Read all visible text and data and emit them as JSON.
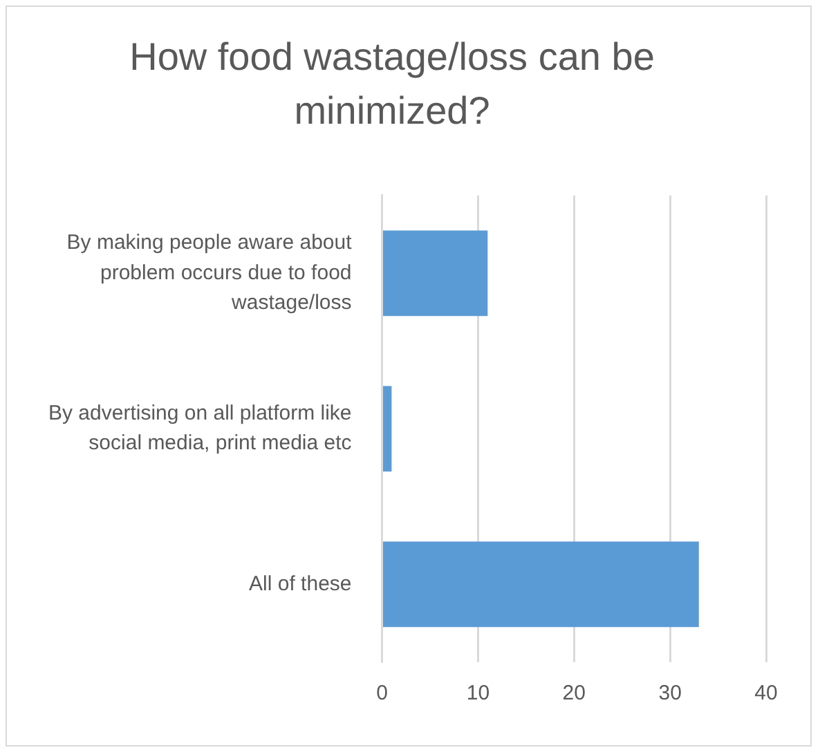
{
  "chart_data": {
    "type": "bar",
    "orientation": "horizontal",
    "title": "How food wastage/loss can be minimized?",
    "categories": [
      "By making people aware about problem occurs due to food wastage/loss",
      "By advertising on all platform like social media, print media etc",
      "All of these"
    ],
    "values": [
      11,
      1,
      33
    ],
    "color": "#5b9bd5",
    "xlim": [
      0,
      40
    ],
    "xticks": [
      0,
      10,
      20,
      30,
      40
    ],
    "grid": "x"
  }
}
